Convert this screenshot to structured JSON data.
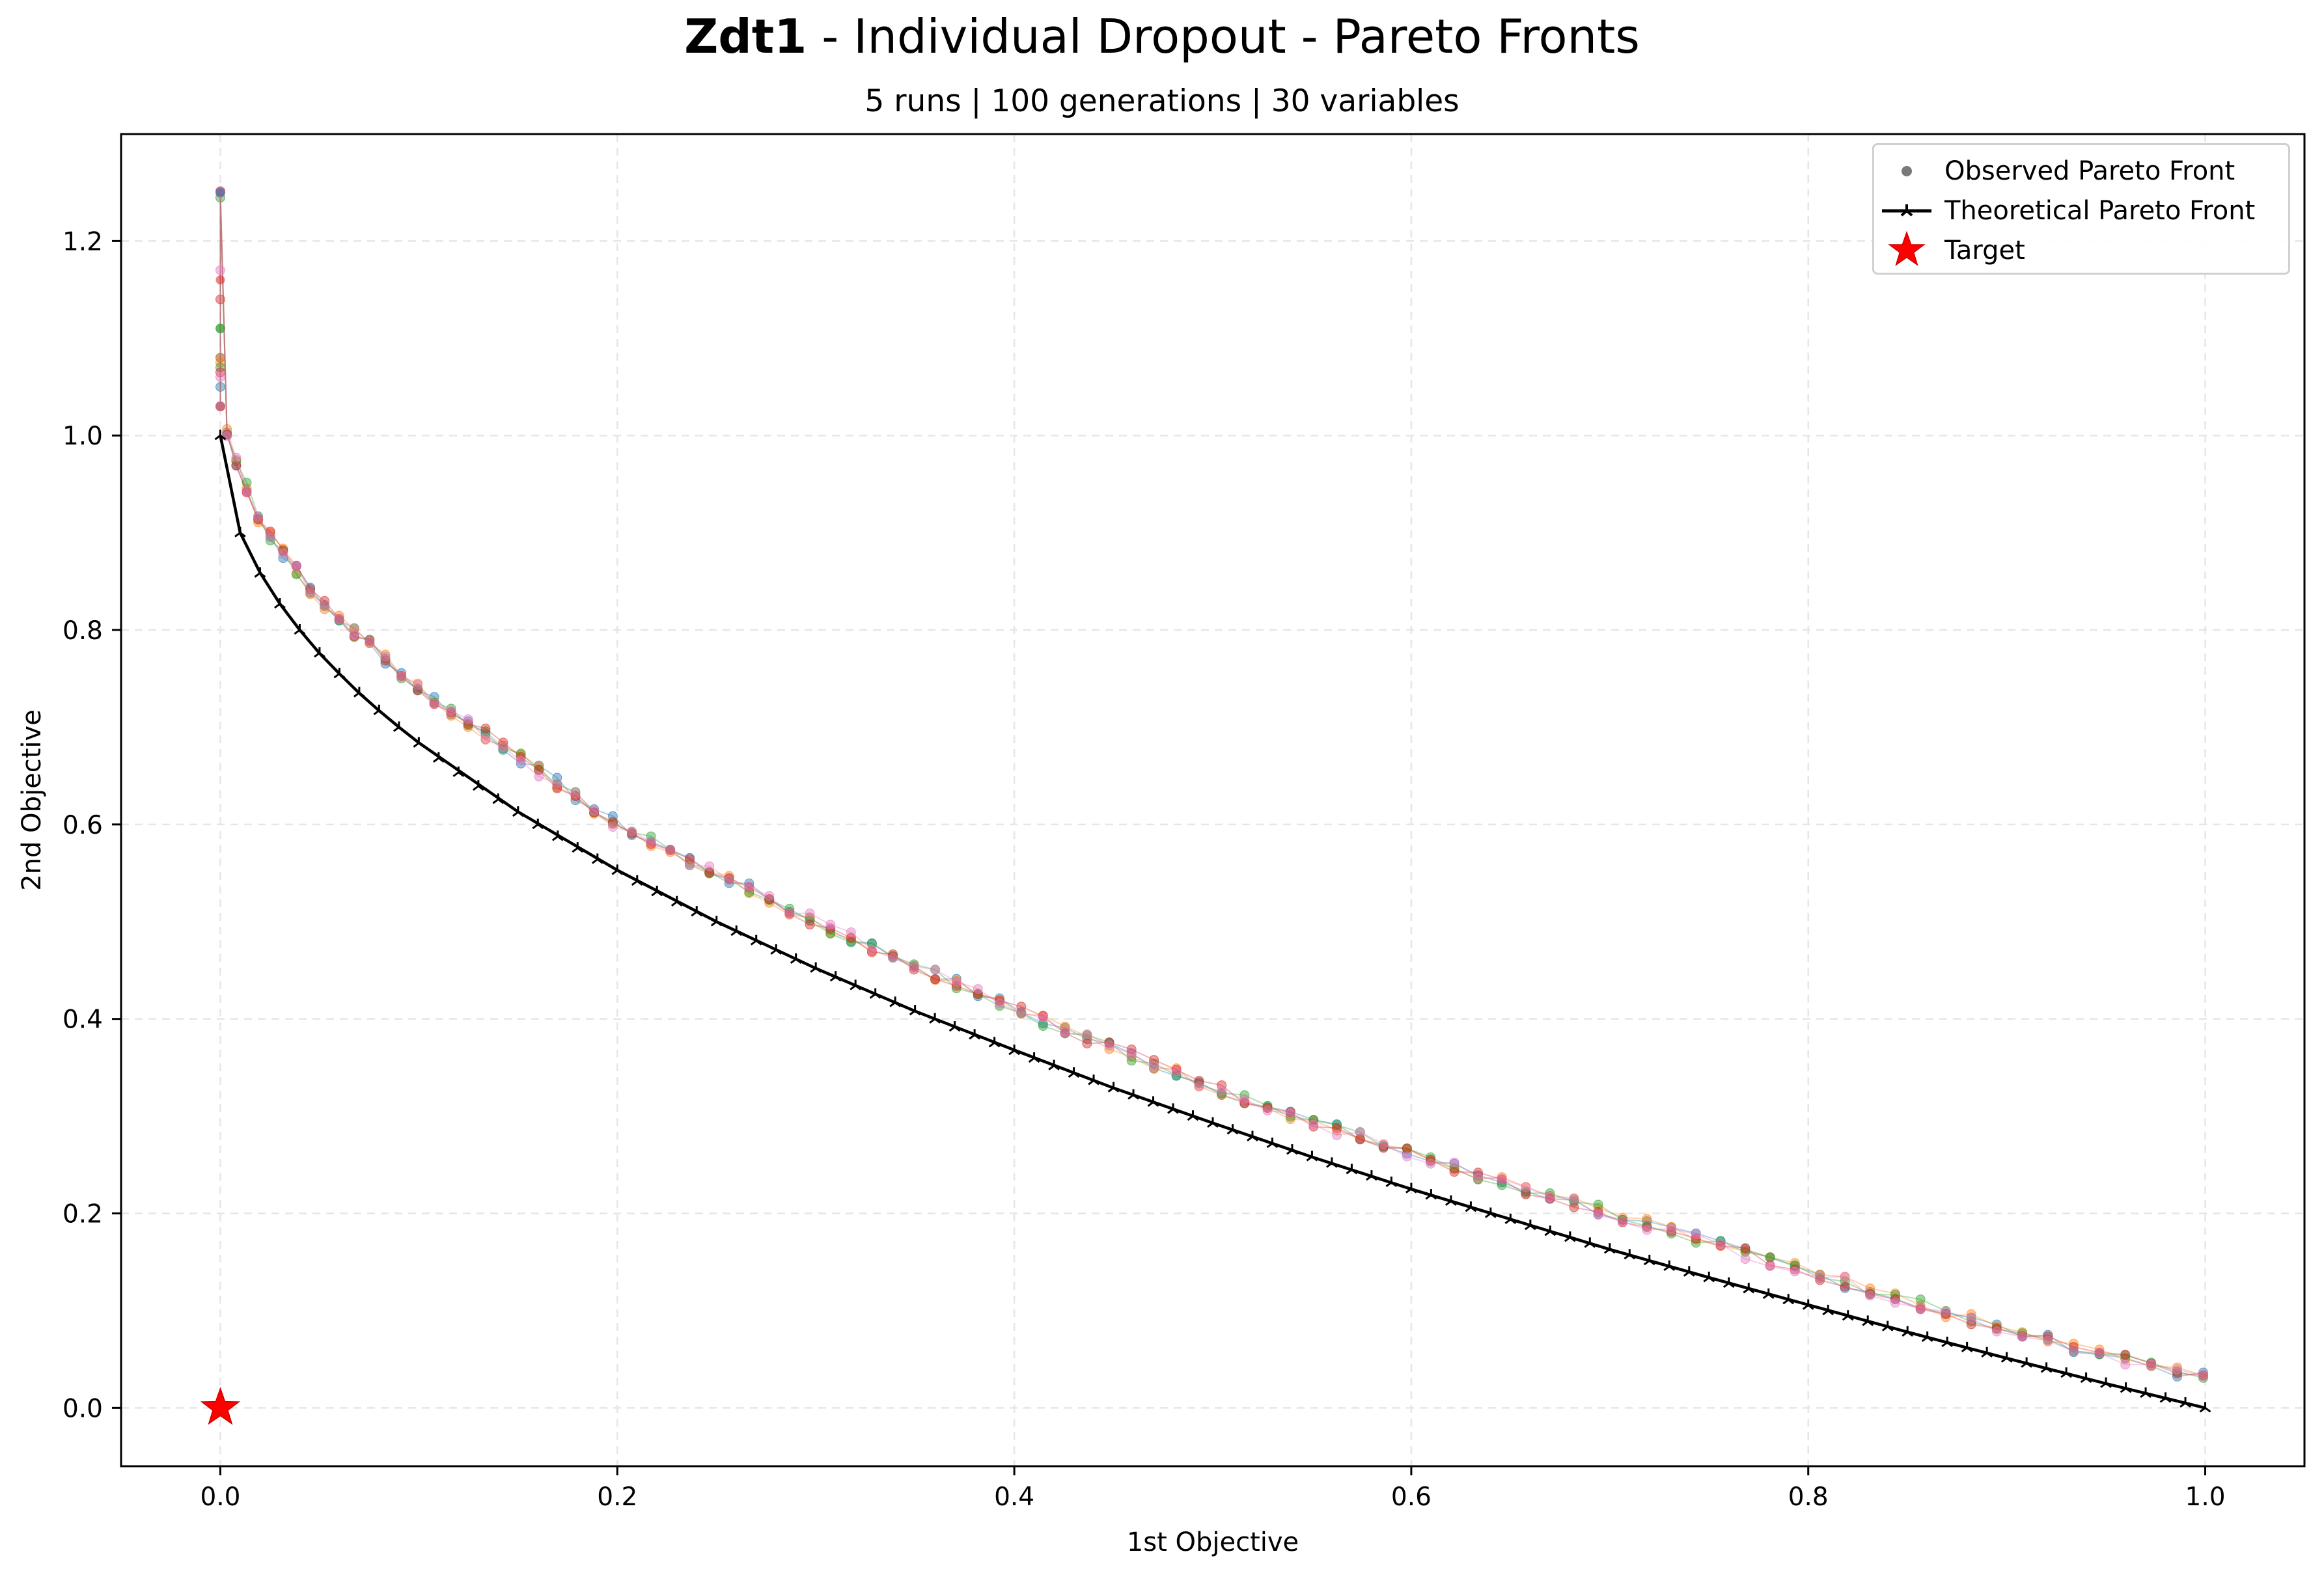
{
  "title": {
    "bold": "Zdt1",
    "rest": " - Individual Dropout - Pareto Fronts"
  },
  "subtitle": "5 runs | 100 generations | 30 variables",
  "legend": {
    "observed": "Observed Pareto Front",
    "theoretical": "Theoretical Pareto Front",
    "target": "Target"
  },
  "chart_data": {
    "type": "scatter",
    "xlabel": "1st Objective",
    "ylabel": "2nd Objective",
    "xlim": [
      -0.05,
      1.05
    ],
    "ylim": [
      -0.06,
      1.31
    ],
    "xticks": [
      0.0,
      0.2,
      0.4,
      0.6,
      0.8,
      1.0
    ],
    "xtick_labels": [
      "0.0",
      "0.2",
      "0.4",
      "0.6",
      "0.8",
      "1.0"
    ],
    "yticks": [
      0.0,
      0.2,
      0.4,
      0.6,
      0.8,
      1.0,
      1.2
    ],
    "ytick_labels": [
      "0.0",
      "0.2",
      "0.4",
      "0.6",
      "0.8",
      "1.0",
      "1.2"
    ],
    "grid": true,
    "legend_position": "top-right",
    "run_colors": [
      "#1f77b4",
      "#ff7f0e",
      "#2ca02c",
      "#d62728",
      "#e377c2"
    ],
    "observed_front_approx": {
      "x": [
        0.0,
        0.0,
        0.0,
        0.001,
        0.005,
        0.02,
        0.05,
        0.1,
        0.2,
        0.3,
        0.4,
        0.5,
        0.6,
        0.7,
        0.8,
        0.9,
        1.0
      ],
      "y": [
        1.25,
        1.16,
        1.06,
        1.02,
        0.99,
        0.91,
        0.83,
        0.74,
        0.6,
        0.5,
        0.41,
        0.33,
        0.26,
        0.2,
        0.14,
        0.08,
        0.03
      ]
    },
    "theoretical_front": {
      "x": [
        0.0,
        0.01,
        0.02,
        0.03,
        0.04,
        0.05,
        0.06,
        0.07,
        0.08,
        0.09,
        0.1,
        0.15,
        0.2,
        0.25,
        0.3,
        0.35,
        0.4,
        0.45,
        0.5,
        0.55,
        0.6,
        0.65,
        0.7,
        0.75,
        0.8,
        0.85,
        0.9,
        0.95,
        1.0
      ],
      "y": [
        1.0,
        0.9,
        0.859,
        0.827,
        0.8,
        0.776,
        0.755,
        0.735,
        0.717,
        0.7,
        0.684,
        0.613,
        0.553,
        0.5,
        0.452,
        0.408,
        0.368,
        0.329,
        0.293,
        0.258,
        0.225,
        0.194,
        0.163,
        0.134,
        0.106,
        0.078,
        0.051,
        0.025,
        0.0
      ]
    },
    "target": {
      "x": 0.0,
      "y": 0.0
    }
  }
}
